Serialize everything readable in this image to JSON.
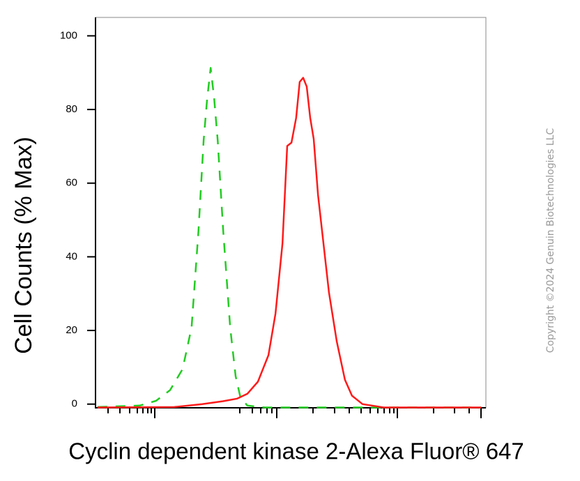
{
  "chart_data": {
    "type": "line",
    "y_label": "Cell Counts (% Max)",
    "x_label": "Cyclin dependent kinase 2-Alexa Fluor® 647",
    "watermark": "Copyright ©2024 Genuin Biotechnologies LLC",
    "xlim": [
      0,
      100
    ],
    "ylim": [
      -1,
      105
    ],
    "yticks": [
      0,
      20,
      40,
      60,
      80,
      100
    ],
    "series": [
      {
        "color": "#22cc22",
        "dashed": true,
        "x": [
          0.5,
          11.3,
          15.5,
          19.1,
          22.3,
          24.6,
          26.4,
          27.7,
          28.6,
          29.5,
          30.4,
          31.3,
          32.7,
          34.5,
          35.9,
          37.1,
          38.9,
          43.4,
          64.8,
          98.8
        ],
        "values": [
          -0.8,
          -0.4,
          0.9,
          3.8,
          9.5,
          20.8,
          47.3,
          71.6,
          83.0,
          91.3,
          83.0,
          71.6,
          47.3,
          20.8,
          7.6,
          1.9,
          -0.4,
          -0.9,
          -0.9,
          -0.9
        ]
      },
      {
        "color": "#ff1a1a",
        "dashed": false,
        "x": [
          0.5,
          20.2,
          27.3,
          32.7,
          36.3,
          38.9,
          41.6,
          44.3,
          46.1,
          47.9,
          49.1,
          50.2,
          51.4,
          52.3,
          53.2,
          54.1,
          55.0,
          55.9,
          57.0,
          58.2,
          59.8,
          61.8,
          63.9,
          65.7,
          68.4,
          73.8,
          98.8
        ],
        "values": [
          -0.9,
          -0.8,
          0,
          0.8,
          1.5,
          2.8,
          6.1,
          13.3,
          24.6,
          43.6,
          70.1,
          71.0,
          77.7,
          87.5,
          88.6,
          86.2,
          77.7,
          72.0,
          56.8,
          45.5,
          30.3,
          17.0,
          6.6,
          2.3,
          0,
          -0.9,
          -0.9
        ]
      }
    ]
  }
}
